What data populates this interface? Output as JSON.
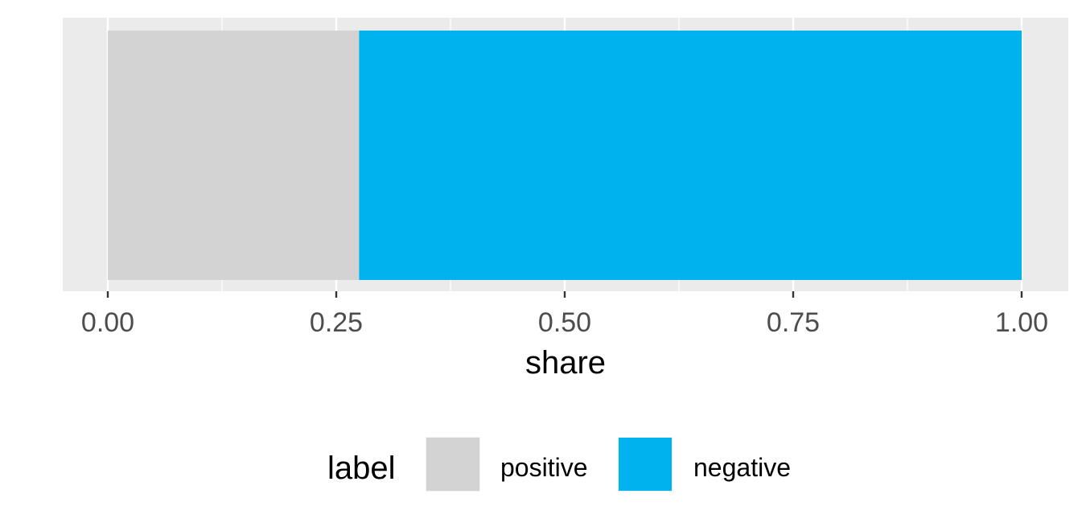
{
  "chart_data": {
    "type": "bar",
    "orientation": "horizontal",
    "stacked": true,
    "series": [
      {
        "name": "positive",
        "values": [
          0.275
        ],
        "color": "#d3d3d3"
      },
      {
        "name": "negative",
        "values": [
          0.725
        ],
        "color": "#00b2ed"
      }
    ],
    "xlabel": "share",
    "ylabel": "",
    "xlim": [
      0,
      1
    ],
    "xticks": [
      0,
      0.25,
      0.5,
      0.75,
      1
    ],
    "xtick_labels": [
      "0.00",
      "0.25",
      "0.50",
      "0.75",
      "1.00"
    ],
    "grid": true,
    "panel_background": "#ebebeb",
    "gridline_color": "#ffffff",
    "legend": {
      "title": "label",
      "position": "bottom",
      "entries": [
        "positive",
        "negative"
      ]
    }
  }
}
